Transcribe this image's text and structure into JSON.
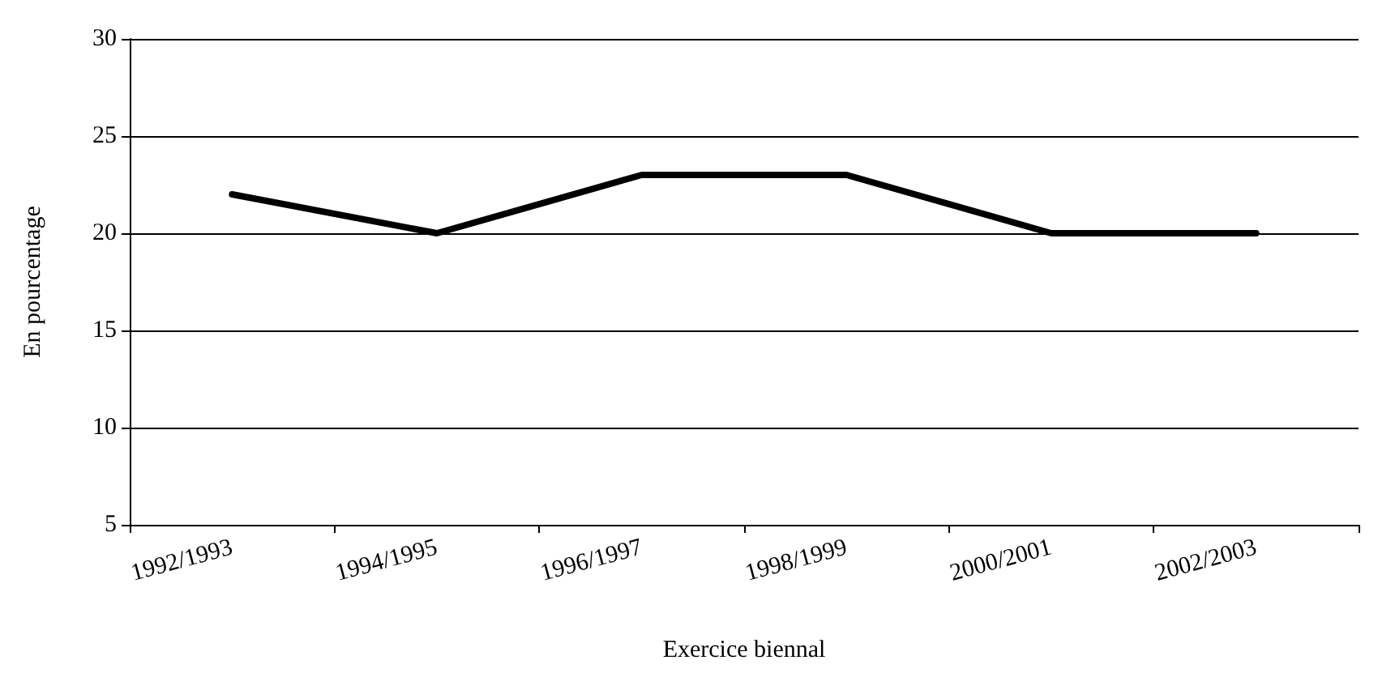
{
  "chart_data": {
    "type": "line",
    "xlabel": "Exercice biennal",
    "ylabel": "En pourcentage",
    "categories": [
      "1992/1993",
      "1994/1995",
      "1996/1997",
      "1998/1999",
      "2000/2001",
      "2002/2003"
    ],
    "series": [
      {
        "color": "#000000",
        "values": [
          22,
          20,
          23,
          23,
          20,
          20
        ]
      }
    ],
    "ylim": [
      5,
      30
    ],
    "yticks": [
      5,
      10,
      15,
      20,
      25,
      30
    ],
    "grid": "y",
    "marker": "none",
    "line_style": "solid"
  }
}
